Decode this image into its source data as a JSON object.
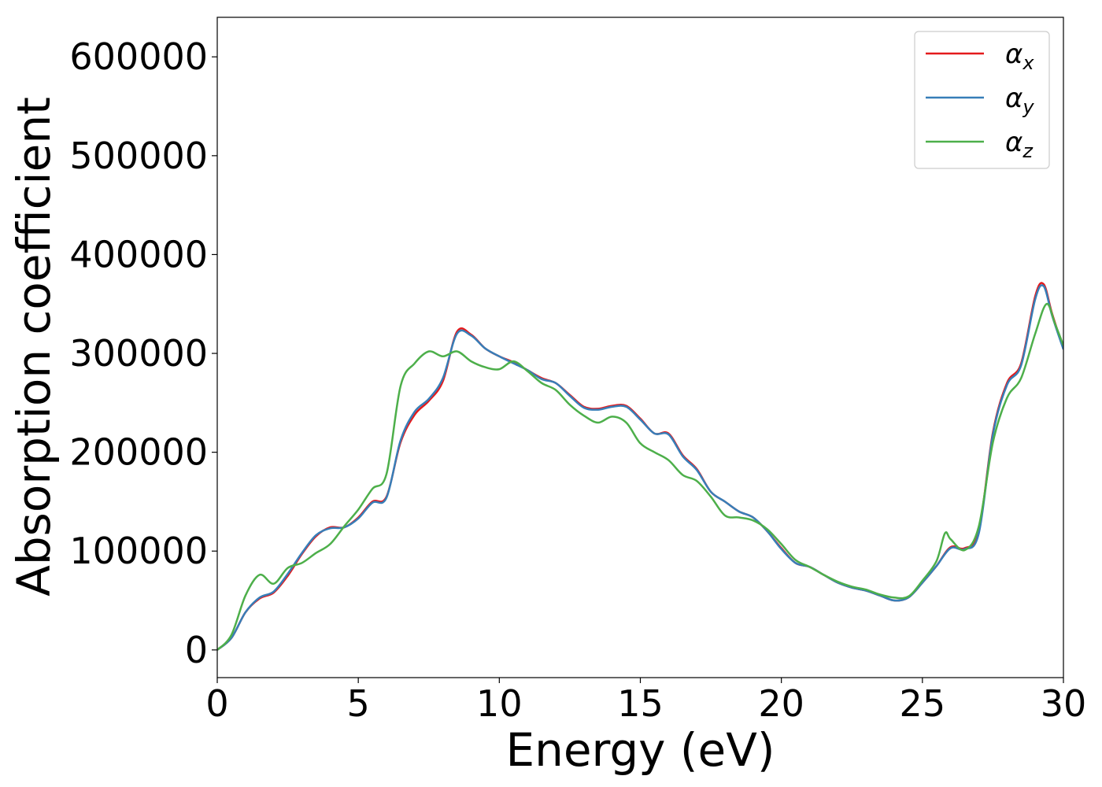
{
  "chart_data": {
    "type": "line",
    "xlabel": "Energy (eV)",
    "ylabel": "Absorption coefficient",
    "xlim": [
      0,
      30
    ],
    "ylim": [
      -28000,
      640000
    ],
    "xticks": [
      0,
      5,
      10,
      15,
      20,
      25,
      30
    ],
    "yticks": [
      0,
      100000,
      200000,
      300000,
      400000,
      500000,
      600000
    ],
    "xtick_labels": [
      "0",
      "5",
      "10",
      "15",
      "20",
      "25",
      "30"
    ],
    "ytick_labels": [
      "0",
      "100000",
      "200000",
      "300000",
      "400000",
      "500000",
      "600000"
    ],
    "grid": false,
    "legend_position": "top-right",
    "series": [
      {
        "name": "α_x",
        "label_main": "α",
        "label_sub": "x",
        "color": "#e41a1c",
        "points": [
          [
            0,
            0
          ],
          [
            0.5,
            12000
          ],
          [
            1,
            38000
          ],
          [
            1.5,
            52000
          ],
          [
            2,
            58000
          ],
          [
            2.5,
            75000
          ],
          [
            3,
            97000
          ],
          [
            3.5,
            115000
          ],
          [
            4,
            124000
          ],
          [
            4.5,
            124000
          ],
          [
            5,
            134000
          ],
          [
            5.5,
            150000
          ],
          [
            6,
            155000
          ],
          [
            6.5,
            210000
          ],
          [
            7,
            238000
          ],
          [
            7.5,
            252000
          ],
          [
            8,
            272000
          ],
          [
            8.5,
            322000
          ],
          [
            9,
            319000
          ],
          [
            9.5,
            305000
          ],
          [
            10,
            297000
          ],
          [
            10.5,
            291000
          ],
          [
            11,
            283000
          ],
          [
            11.5,
            275000
          ],
          [
            12,
            270000
          ],
          [
            12.5,
            258000
          ],
          [
            13,
            246000
          ],
          [
            13.5,
            244000
          ],
          [
            14,
            247000
          ],
          [
            14.5,
            247000
          ],
          [
            15,
            234000
          ],
          [
            15.5,
            219000
          ],
          [
            16,
            219000
          ],
          [
            16.5,
            197000
          ],
          [
            17,
            183000
          ],
          [
            17.5,
            160000
          ],
          [
            18,
            150000
          ],
          [
            18.5,
            140000
          ],
          [
            19,
            134000
          ],
          [
            19.5,
            120000
          ],
          [
            20,
            103000
          ],
          [
            20.5,
            88000
          ],
          [
            21,
            84000
          ],
          [
            21.5,
            76000
          ],
          [
            22,
            68000
          ],
          [
            22.5,
            63000
          ],
          [
            23,
            60000
          ],
          [
            23.5,
            55000
          ],
          [
            24,
            50000
          ],
          [
            24.5,
            53000
          ],
          [
            25,
            68000
          ],
          [
            25.5,
            85000
          ],
          [
            26,
            104000
          ],
          [
            26.5,
            103000
          ],
          [
            27,
            120000
          ],
          [
            27.5,
            220000
          ],
          [
            28,
            270000
          ],
          [
            28.5,
            290000
          ],
          [
            29,
            358000
          ],
          [
            29.3,
            370000
          ],
          [
            29.6,
            340000
          ],
          [
            30,
            305000
          ]
        ]
      },
      {
        "name": "α_y",
        "label_main": "α",
        "label_sub": "y",
        "color": "#377eb8",
        "points": [
          [
            0,
            0
          ],
          [
            0.5,
            12000
          ],
          [
            1,
            38000
          ],
          [
            1.5,
            53000
          ],
          [
            2,
            59000
          ],
          [
            2.5,
            77000
          ],
          [
            3,
            98000
          ],
          [
            3.5,
            116000
          ],
          [
            4,
            123000
          ],
          [
            4.5,
            124000
          ],
          [
            5,
            133000
          ],
          [
            5.5,
            149000
          ],
          [
            6,
            154000
          ],
          [
            6.5,
            212000
          ],
          [
            7,
            241000
          ],
          [
            7.5,
            254000
          ],
          [
            8,
            275000
          ],
          [
            8.5,
            320000
          ],
          [
            9,
            318000
          ],
          [
            9.5,
            305000
          ],
          [
            10,
            297000
          ],
          [
            10.5,
            290000
          ],
          [
            11,
            283000
          ],
          [
            11.5,
            274000
          ],
          [
            12,
            270000
          ],
          [
            12.5,
            257000
          ],
          [
            13,
            245000
          ],
          [
            13.5,
            243000
          ],
          [
            14,
            246000
          ],
          [
            14.5,
            246000
          ],
          [
            15,
            233000
          ],
          [
            15.5,
            219000
          ],
          [
            16,
            218000
          ],
          [
            16.5,
            196000
          ],
          [
            17,
            182000
          ],
          [
            17.5,
            160000
          ],
          [
            18,
            150000
          ],
          [
            18.5,
            140000
          ],
          [
            19,
            134000
          ],
          [
            19.5,
            120000
          ],
          [
            20,
            102000
          ],
          [
            20.5,
            88000
          ],
          [
            21,
            84000
          ],
          [
            21.5,
            76000
          ],
          [
            22,
            68000
          ],
          [
            22.5,
            63000
          ],
          [
            23,
            60000
          ],
          [
            23.5,
            55000
          ],
          [
            24,
            50000
          ],
          [
            24.5,
            53000
          ],
          [
            25,
            68000
          ],
          [
            25.5,
            85000
          ],
          [
            26,
            103000
          ],
          [
            26.5,
            102000
          ],
          [
            27,
            118000
          ],
          [
            27.5,
            218000
          ],
          [
            28,
            268000
          ],
          [
            28.5,
            288000
          ],
          [
            29,
            355000
          ],
          [
            29.3,
            368000
          ],
          [
            29.6,
            338000
          ],
          [
            30,
            304000
          ]
        ]
      },
      {
        "name": "α_z",
        "label_main": "α",
        "label_sub": "z",
        "color": "#4daf4a",
        "points": [
          [
            0,
            0
          ],
          [
            0.5,
            15000
          ],
          [
            1,
            55000
          ],
          [
            1.5,
            76000
          ],
          [
            2,
            67000
          ],
          [
            2.5,
            83000
          ],
          [
            3,
            88000
          ],
          [
            3.5,
            98000
          ],
          [
            4,
            107000
          ],
          [
            4.5,
            125000
          ],
          [
            5,
            142000
          ],
          [
            5.5,
            163000
          ],
          [
            6,
            178000
          ],
          [
            6.5,
            267000
          ],
          [
            7,
            290000
          ],
          [
            7.5,
            302000
          ],
          [
            8,
            297000
          ],
          [
            8.5,
            302000
          ],
          [
            9,
            292000
          ],
          [
            9.5,
            286000
          ],
          [
            10,
            284000
          ],
          [
            10.5,
            292000
          ],
          [
            11,
            282000
          ],
          [
            11.5,
            270000
          ],
          [
            12,
            263000
          ],
          [
            12.5,
            248000
          ],
          [
            13,
            237000
          ],
          [
            13.5,
            230000
          ],
          [
            14,
            236000
          ],
          [
            14.5,
            230000
          ],
          [
            15,
            209000
          ],
          [
            15.5,
            200000
          ],
          [
            16,
            192000
          ],
          [
            16.5,
            177000
          ],
          [
            17,
            171000
          ],
          [
            17.5,
            155000
          ],
          [
            18,
            136000
          ],
          [
            18.5,
            134000
          ],
          [
            19,
            131000
          ],
          [
            19.5,
            122000
          ],
          [
            20,
            107000
          ],
          [
            20.5,
            91000
          ],
          [
            21,
            84000
          ],
          [
            21.5,
            76000
          ],
          [
            22,
            69000
          ],
          [
            22.5,
            64000
          ],
          [
            23,
            61000
          ],
          [
            23.5,
            56000
          ],
          [
            24,
            53000
          ],
          [
            24.5,
            54000
          ],
          [
            25,
            70000
          ],
          [
            25.5,
            90000
          ],
          [
            25.8,
            118000
          ],
          [
            26,
            112000
          ],
          [
            26.5,
            101000
          ],
          [
            27,
            125000
          ],
          [
            27.5,
            210000
          ],
          [
            28,
            255000
          ],
          [
            28.5,
            275000
          ],
          [
            29,
            320000
          ],
          [
            29.4,
            350000
          ],
          [
            29.7,
            330000
          ],
          [
            30,
            308000
          ]
        ]
      }
    ]
  }
}
